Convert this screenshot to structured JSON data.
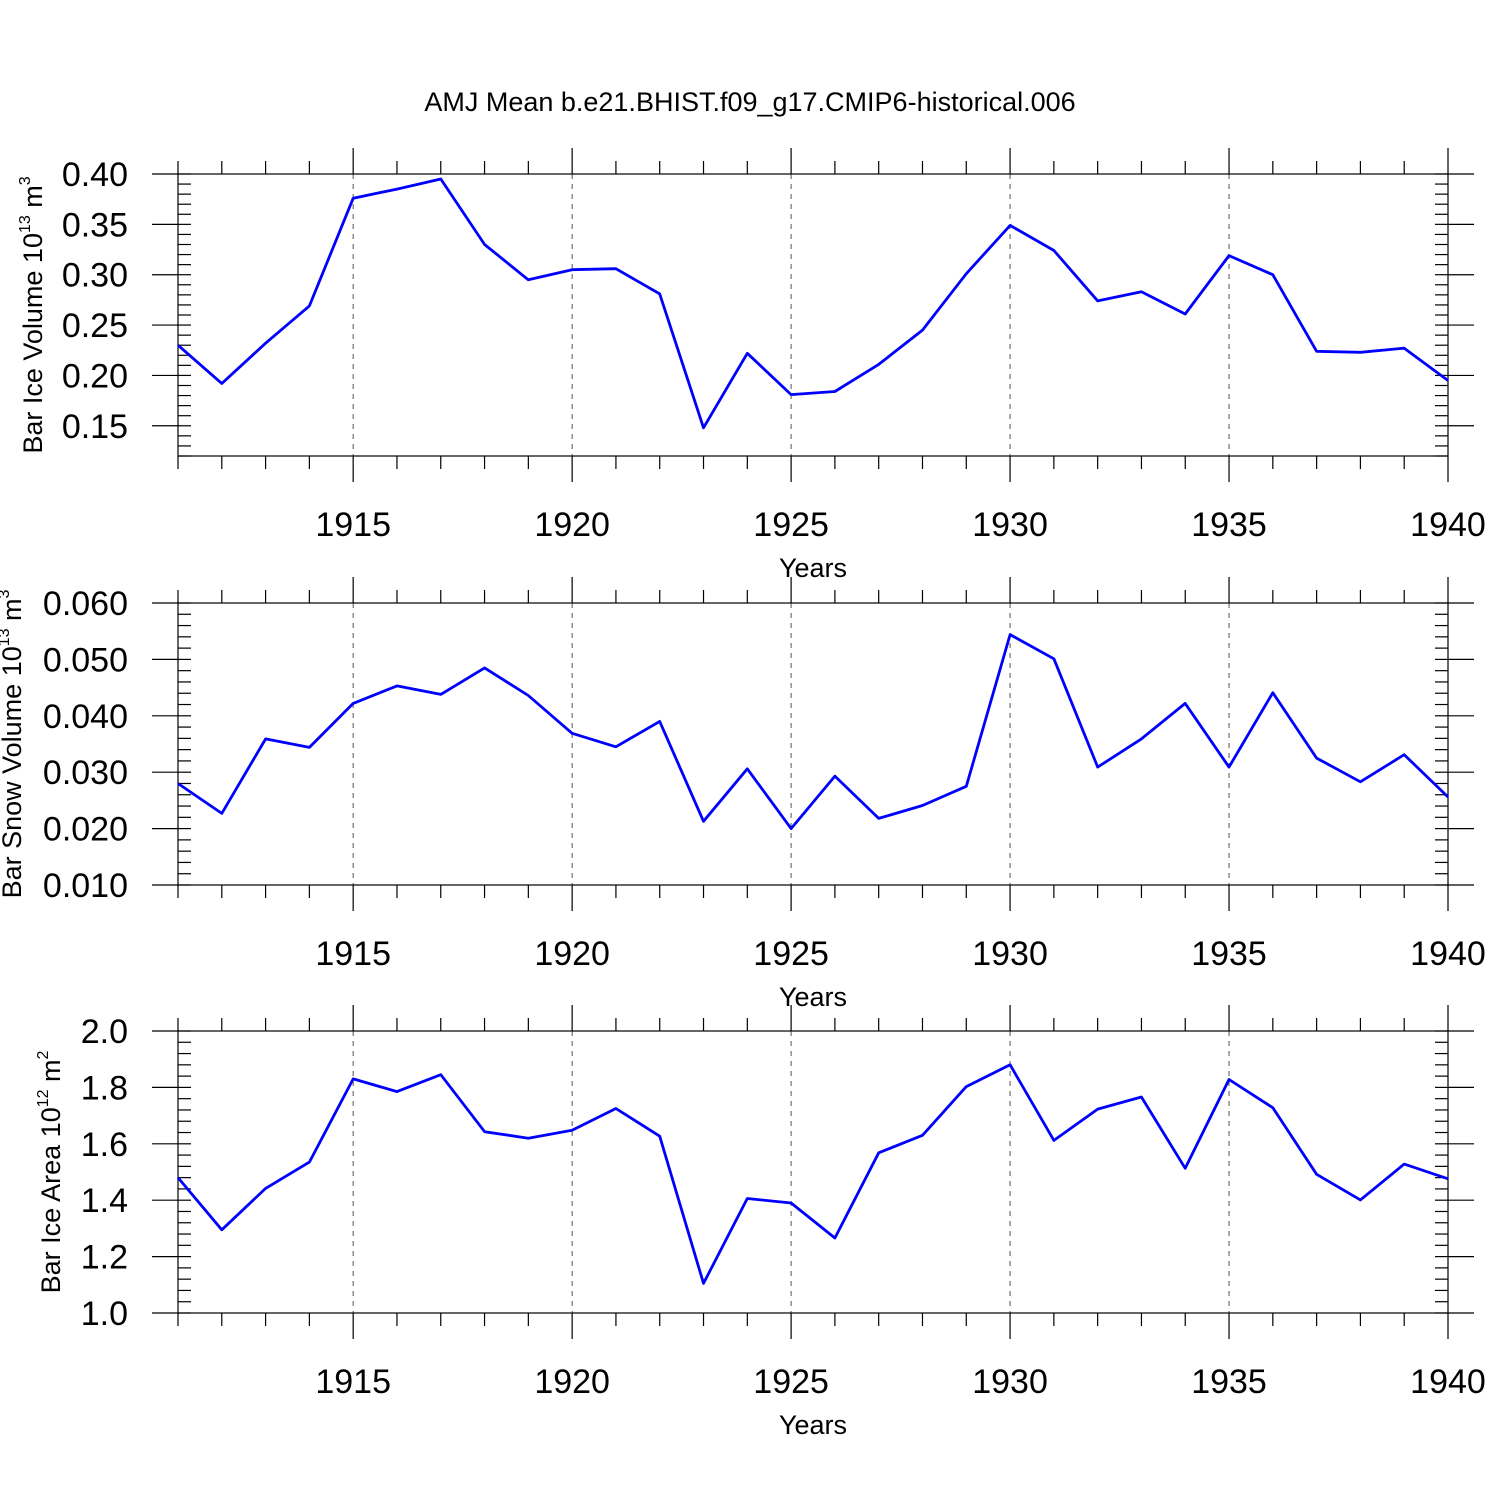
{
  "title": "AMJ Mean b.e21.BHIST.f09_g17.CMIP6-historical.006",
  "chart_data": [
    {
      "type": "line",
      "ylabel_main": "Bar Ice Volume 10",
      "ylabel_sup": "13",
      "ylabel_unit": " m",
      "ylabel_unit_sup": "3",
      "xlabel": "Years",
      "xlim": [
        1911,
        1940
      ],
      "ylim": [
        0.12,
        0.4
      ],
      "yticks": [
        0.15,
        0.2,
        0.25,
        0.3,
        0.35,
        0.4
      ],
      "ytick_labels": [
        "0.15",
        "0.20",
        "0.25",
        "0.30",
        "0.35",
        "0.40"
      ],
      "yminor_step": 0.01,
      "xticks": [
        1915,
        1920,
        1925,
        1930,
        1935,
        1940
      ],
      "xtick_labels": [
        "1915",
        "1920",
        "1925",
        "1930",
        "1935",
        "1940"
      ],
      "x": [
        1911,
        1912,
        1913,
        1914,
        1915,
        1916,
        1917,
        1918,
        1919,
        1920,
        1921,
        1922,
        1923,
        1924,
        1925,
        1926,
        1927,
        1928,
        1929,
        1930,
        1931,
        1932,
        1933,
        1934,
        1935,
        1936,
        1937,
        1938,
        1939,
        1940
      ],
      "values": [
        0.23,
        0.192,
        0.232,
        0.269,
        0.376,
        0.385,
        0.395,
        0.33,
        0.295,
        0.305,
        0.306,
        0.281,
        0.148,
        0.222,
        0.181,
        0.184,
        0.211,
        0.245,
        0.301,
        0.349,
        0.324,
        0.274,
        0.283,
        0.261,
        0.319,
        0.3,
        0.224,
        0.223,
        0.227,
        0.195
      ],
      "series_name": "Bar Ice Volume",
      "color": "#0000ff"
    },
    {
      "type": "line",
      "ylabel_main": "Bar Snow Volume 10",
      "ylabel_sup": "13",
      "ylabel_unit": " m",
      "ylabel_unit_sup": "3",
      "xlabel": "Years",
      "xlim": [
        1911,
        1940
      ],
      "ylim": [
        0.01,
        0.06
      ],
      "yticks": [
        0.01,
        0.02,
        0.03,
        0.04,
        0.05,
        0.06
      ],
      "ytick_labels": [
        "0.010",
        "0.020",
        "0.030",
        "0.040",
        "0.050",
        "0.060"
      ],
      "yminor_step": 0.002,
      "xticks": [
        1915,
        1920,
        1925,
        1930,
        1935,
        1940
      ],
      "xtick_labels": [
        "1915",
        "1920",
        "1925",
        "1930",
        "1935",
        "1940"
      ],
      "x": [
        1911,
        1912,
        1913,
        1914,
        1915,
        1916,
        1917,
        1918,
        1919,
        1920,
        1921,
        1922,
        1923,
        1924,
        1925,
        1926,
        1927,
        1928,
        1929,
        1930,
        1931,
        1932,
        1933,
        1934,
        1935,
        1936,
        1937,
        1938,
        1939,
        1940
      ],
      "values": [
        0.028,
        0.0227,
        0.0359,
        0.0344,
        0.0422,
        0.0453,
        0.0438,
        0.0485,
        0.0436,
        0.0369,
        0.0345,
        0.039,
        0.0213,
        0.0306,
        0.02,
        0.0293,
        0.0218,
        0.0241,
        0.0275,
        0.0544,
        0.0501,
        0.0309,
        0.0359,
        0.0422,
        0.0309,
        0.0441,
        0.0325,
        0.0283,
        0.0331,
        0.0256
      ],
      "series_name": "Bar Snow Volume",
      "color": "#0000ff"
    },
    {
      "type": "line",
      "ylabel_main": "Bar Ice Area 10",
      "ylabel_sup": "12",
      "ylabel_unit": " m",
      "ylabel_unit_sup": "2",
      "xlabel": "Years",
      "xlim": [
        1911,
        1940
      ],
      "ylim": [
        1.0,
        2.0
      ],
      "yticks": [
        1.0,
        1.2,
        1.4,
        1.6,
        1.8,
        2.0
      ],
      "ytick_labels": [
        "1.0",
        "1.2",
        "1.4",
        "1.6",
        "1.8",
        "2.0"
      ],
      "yminor_step": 0.04,
      "xticks": [
        1915,
        1920,
        1925,
        1930,
        1935,
        1940
      ],
      "xtick_labels": [
        "1915",
        "1920",
        "1925",
        "1930",
        "1935",
        "1940"
      ],
      "x": [
        1911,
        1912,
        1913,
        1914,
        1915,
        1916,
        1917,
        1918,
        1919,
        1920,
        1921,
        1922,
        1923,
        1924,
        1925,
        1926,
        1927,
        1928,
        1929,
        1930,
        1931,
        1932,
        1933,
        1934,
        1935,
        1936,
        1937,
        1938,
        1939,
        1940
      ],
      "values": [
        1.48,
        1.295,
        1.442,
        1.535,
        1.83,
        1.785,
        1.845,
        1.643,
        1.62,
        1.648,
        1.725,
        1.627,
        1.105,
        1.406,
        1.39,
        1.266,
        1.568,
        1.63,
        1.803,
        1.88,
        1.612,
        1.723,
        1.766,
        1.513,
        1.828,
        1.728,
        1.492,
        1.401,
        1.528,
        1.476
      ],
      "series_name": "Bar Ice Area",
      "color": "#0000ff"
    }
  ]
}
